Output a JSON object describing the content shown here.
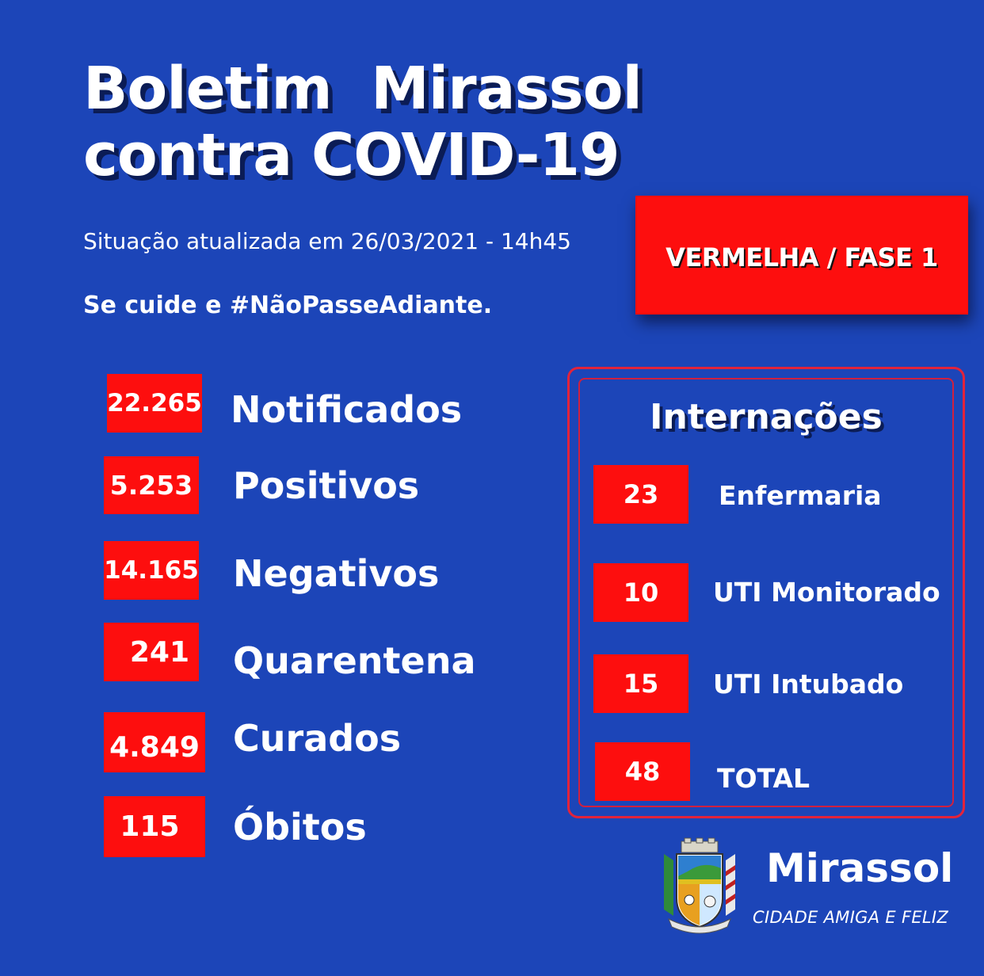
{
  "header": {
    "title_line1": "Boletim  Mirassol",
    "title_line2": "contra COVID-19",
    "updated": "Situação atualizada em 26/03/2021 - 14h45",
    "slogan": "Se cuide e #NãoPasseAdiante."
  },
  "phase": {
    "label": "VERMELHA / FASE 1"
  },
  "stats": [
    {
      "value": "22.265",
      "label": "Notificados"
    },
    {
      "value": "5.253",
      "label": "Positivos"
    },
    {
      "value": "14.165",
      "label": "Negativos"
    },
    {
      "value": "241",
      "label": "Quarentena"
    },
    {
      "value": "4.849",
      "label": "Curados"
    },
    {
      "value": "115",
      "label": "Óbitos"
    }
  ],
  "internacoes": {
    "title": "Internações",
    "items": [
      {
        "value": "23",
        "label": "Enfermaria"
      },
      {
        "value": "10",
        "label": "UTI Monitorado"
      },
      {
        "value": "15",
        "label": "UTI Intubado"
      },
      {
        "value": "48",
        "label": "TOTAL"
      }
    ]
  },
  "footer": {
    "brand": "Mirassol",
    "motto": "CIDADE AMIGA E FELIZ",
    "crest_icon": "city-coat-of-arms-icon"
  },
  "colors": {
    "background": "#1c45b8",
    "accent_red": "#fd0e0e",
    "panel_border": "#e2233b"
  }
}
